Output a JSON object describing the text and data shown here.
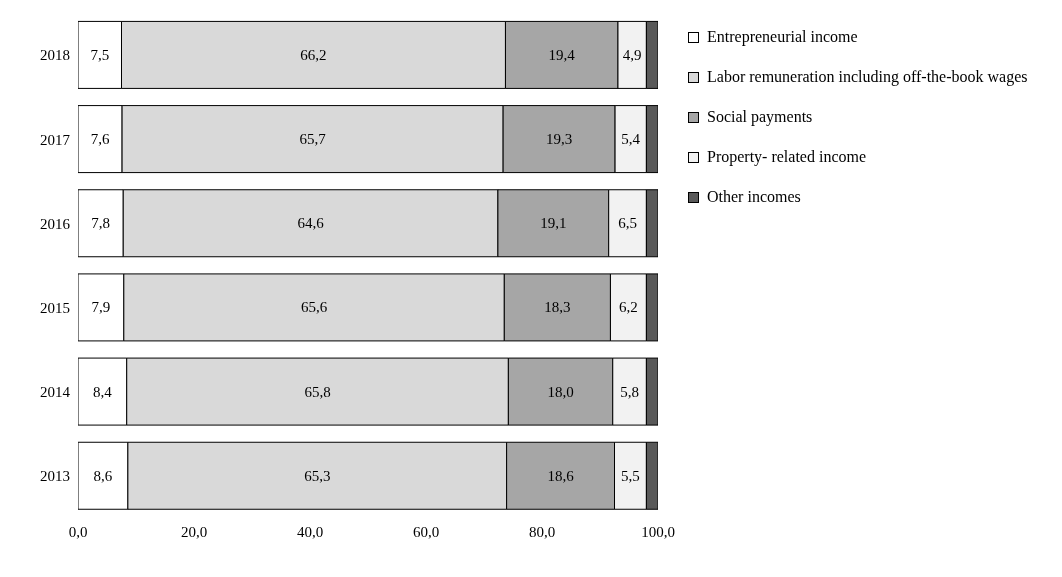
{
  "chart_data": {
    "type": "bar",
    "orientation": "horizontal",
    "stacked": true,
    "categories": [
      "2018",
      "2017",
      "2016",
      "2015",
      "2014",
      "2013"
    ],
    "series": [
      {
        "name": "Entrepreneurial income",
        "color": "#ffffff",
        "values": [
          7.5,
          7.6,
          7.8,
          7.9,
          8.4,
          8.6
        ],
        "value_labels": [
          "7,5",
          "7,6",
          "7,8",
          "7,9",
          "8,4",
          "8,6"
        ]
      },
      {
        "name": "Labor remuneration including off-the-book wages",
        "color": "#d9d9d9",
        "values": [
          66.2,
          65.7,
          64.6,
          65.6,
          65.8,
          65.3
        ],
        "value_labels": [
          "66,2",
          "65,7",
          "64,6",
          "65,6",
          "65,8",
          "65,3"
        ]
      },
      {
        "name": "Social payments",
        "color": "#a6a6a6",
        "values": [
          19.4,
          19.3,
          19.1,
          18.3,
          18.0,
          18.6
        ],
        "value_labels": [
          "19,4",
          "19,3",
          "19,1",
          "18,3",
          "18,0",
          "18,6"
        ]
      },
      {
        "name": "Property- related income",
        "color": "#f2f2f2",
        "values": [
          4.9,
          5.4,
          6.5,
          6.2,
          5.8,
          5.5
        ],
        "value_labels": [
          "4,9",
          "5,4",
          "6,5",
          "6,2",
          "5,8",
          "5,5"
        ]
      },
      {
        "name": "Other incomes",
        "color": "#595959",
        "values": [
          2.0,
          2.0,
          2.0,
          2.0,
          2.0,
          2.0
        ]
      }
    ],
    "xlim": [
      0,
      100
    ],
    "xticks": [
      {
        "value": 0,
        "label": "0,0"
      },
      {
        "value": 20,
        "label": "20,0"
      },
      {
        "value": 40,
        "label": "40,0"
      },
      {
        "value": 60,
        "label": "60,0"
      },
      {
        "value": 80,
        "label": "80,0"
      },
      {
        "value": 100,
        "label": "100,0"
      }
    ],
    "grid": false,
    "legend": "right"
  }
}
